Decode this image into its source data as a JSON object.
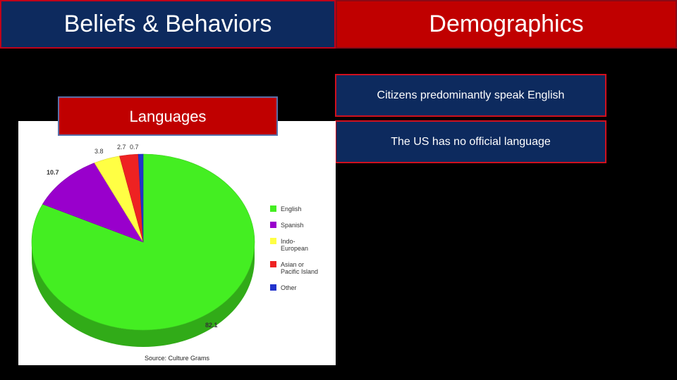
{
  "tabs": {
    "left_label": "Beliefs & Behaviors",
    "right_label": "Demographics"
  },
  "cards": [
    "Citizens predominantly speak English",
    "The US has no official language"
  ],
  "section_label": "Languages",
  "colors": {
    "navy": "#0d2a5e",
    "red": "#c00000"
  },
  "chart_data": {
    "type": "pie",
    "title": "",
    "slices": [
      {
        "label": "English",
        "value": 82.1,
        "value_label": "82.1",
        "color": "#44ee22"
      },
      {
        "label": "Spanish",
        "value": 10.7,
        "value_label": "10.7",
        "color": "#9900cc"
      },
      {
        "label": "Indo-European",
        "value": 3.8,
        "value_label": "3.8",
        "color": "#ffff44"
      },
      {
        "label": "Asian or Pacific Island",
        "value": 2.7,
        "value_label": "2.7",
        "color": "#ee2222"
      },
      {
        "label": "Other",
        "value": 0.7,
        "value_label": "0.7",
        "color": "#2233cc"
      }
    ],
    "legend_entries": [
      [
        "English"
      ],
      [
        "Spanish"
      ],
      [
        "Indo-",
        "European"
      ],
      [
        "Asian or",
        "Pacific Island"
      ],
      [
        "Other"
      ]
    ],
    "legend_position": "right",
    "source": "Source: Culture Grams"
  }
}
